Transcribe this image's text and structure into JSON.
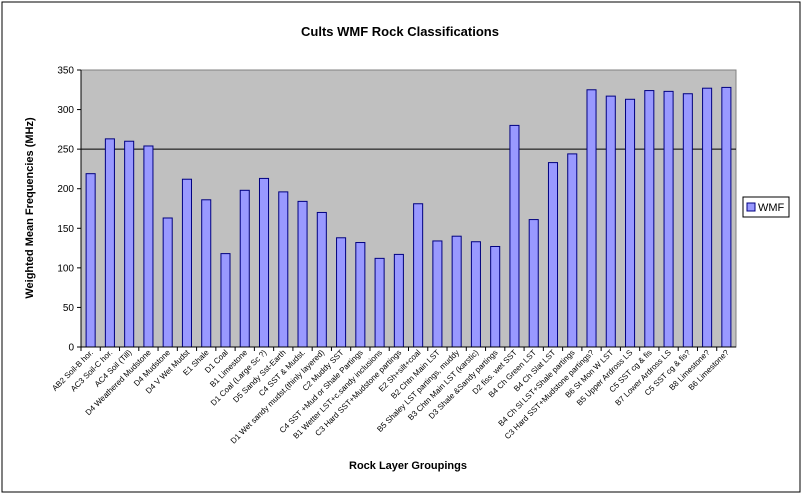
{
  "chart_data": {
    "type": "bar",
    "title": "Cults WMF Rock Classifications",
    "xlabel": "Rock Layer Groupings",
    "ylabel": "Weighted Mean Frequencies (MHz)",
    "ylim": [
      0,
      350
    ],
    "yticks": [
      0,
      50,
      100,
      150,
      200,
      250,
      300,
      350
    ],
    "reference_line": 250,
    "grid": false,
    "legend_position": "right",
    "colors": {
      "bar_fill": "#9999ff",
      "bar_stroke": "#000080",
      "plot_bg": "#c0c0c0"
    },
    "categories": [
      "AB2 Soil-B hor.",
      "AC3 Soil-C hor.",
      "AC4 Soil (Till)",
      "D4 Weathered Mudstone",
      "D4 Mudstone",
      "D4 V Wet Mudst",
      "E1 Shale",
      "D1 Coal",
      "B1 Limestone",
      "D1 Coal (Large Sc ?)",
      "D5 Sandy Sst-Earth",
      "C4 SST & Mudst.",
      "D1 Wet sandy mudst.(thinly layered)",
      "C2 Muddy SST",
      "C4 SST +Mud or Shale Partings",
      "B1 Wetter LST+c.sandy inclusions",
      "C3 Hard SST+Mudstone partings",
      "E2 Sh+silt+coal",
      "B2 Chtn Main LST",
      "B5 Shaley LST partings, muddy",
      "B3 Chtn Main LST (karstic)",
      "D3 Shale &Sandy partings",
      "D2 fiss. wet SST",
      "B4 Ch Green LST",
      "B4 Ch Slat LST",
      "B4 Ch Sl LST+Shale partings",
      "C3 Hard SST+Mudstone partings?",
      "B6 St Mon W LST",
      "B5 Upper Ardross LS",
      "C5 SST cg & fis",
      "B7 Lower Ardross LS",
      "C5 SST cg & fis?",
      "B8 Limestone?",
      "B6 Limestone?"
    ],
    "series": [
      {
        "name": "WMF",
        "values": [
          219,
          263,
          260,
          254,
          163,
          212,
          186,
          118,
          198,
          213,
          196,
          184,
          170,
          138,
          132,
          112,
          117,
          181,
          134,
          140,
          133,
          127,
          280,
          161,
          233,
          244,
          325,
          317,
          313,
          324,
          323,
          320,
          327,
          328
        ]
      }
    ]
  }
}
